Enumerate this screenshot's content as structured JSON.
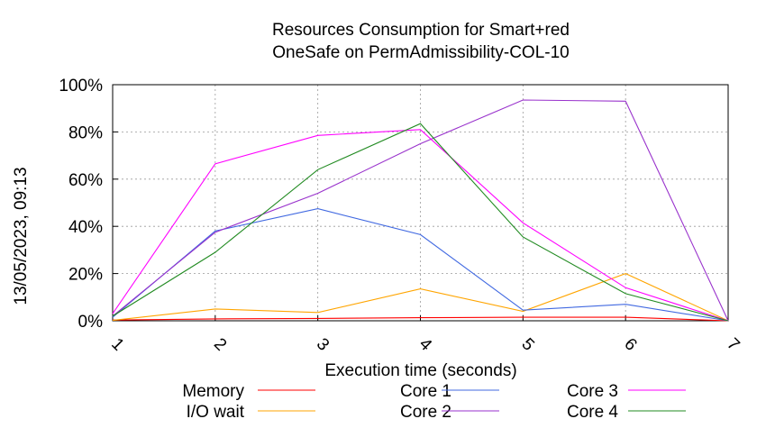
{
  "chart_data": {
    "type": "line",
    "title_lines": [
      "Resources Consumption for Smart+red",
      "OneSafe on PermAdmissibility-COL-10"
    ],
    "xlabel": "Execution time (seconds)",
    "ylabel": "",
    "x": [
      1,
      2,
      3,
      4,
      5,
      6,
      7
    ],
    "x_tick_labels": [
      "1",
      "2",
      "3",
      "4",
      "5",
      "6",
      "7"
    ],
    "xlim": [
      1,
      7
    ],
    "ylim": [
      0,
      100
    ],
    "y_tick_labels": [
      "0%",
      "20%",
      "40%",
      "60%",
      "80%",
      "100%"
    ],
    "grid": true,
    "legend_position": "bottom",
    "series": [
      {
        "name": "Memory",
        "color": "#ff0000",
        "values": [
          0.3,
          0.8,
          1.0,
          1.3,
          1.5,
          1.5,
          0
        ]
      },
      {
        "name": "I/O wait",
        "color": "#ffa500",
        "values": [
          0.2,
          5,
          3.5,
          13.5,
          4,
          20,
          0
        ]
      },
      {
        "name": "Core 1",
        "color": "#4169e1",
        "values": [
          1.5,
          38,
          47.5,
          36.5,
          4.5,
          7,
          0
        ]
      },
      {
        "name": "Core 2",
        "color": "#9932cc",
        "values": [
          2,
          37.5,
          54,
          75,
          93.5,
          93,
          0
        ]
      },
      {
        "name": "Core 3",
        "color": "#ff00ff",
        "values": [
          3,
          66.5,
          78.5,
          81,
          41.5,
          14,
          0
        ]
      },
      {
        "name": "Core 4",
        "color": "#228b22",
        "values": [
          2,
          29,
          64,
          83.5,
          35.5,
          11.5,
          0
        ]
      }
    ]
  },
  "timestamp": "13/05/2023, 09:13"
}
